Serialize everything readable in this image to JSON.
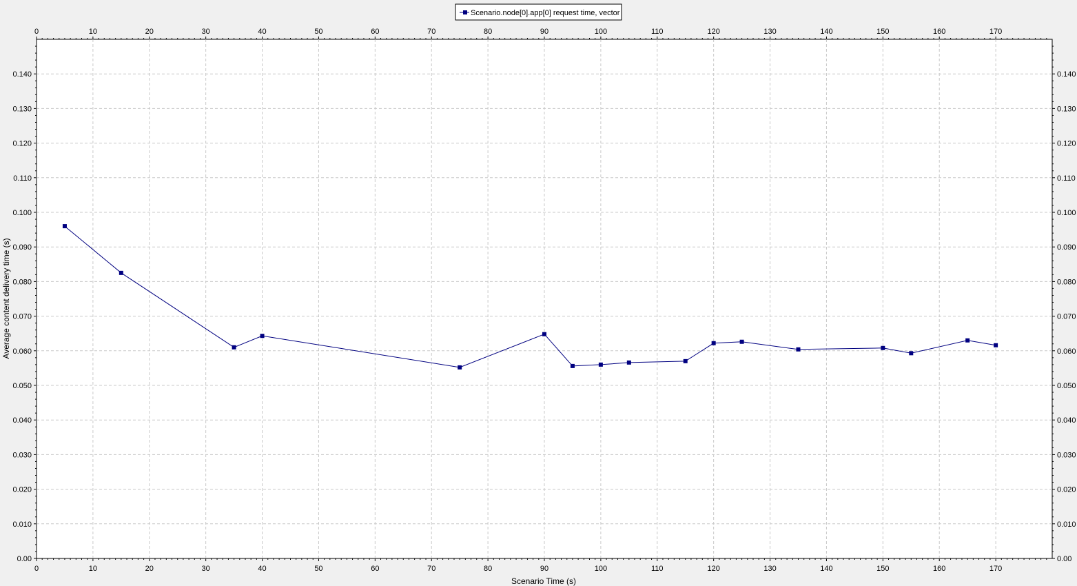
{
  "chart_data": {
    "type": "line",
    "title": "",
    "xlabel": "Scenario Time (s)",
    "ylabel": "Average content delivery time (s)",
    "xlim": [
      0,
      180
    ],
    "ylim": [
      0,
      0.15
    ],
    "x_ticks": [
      0,
      10,
      20,
      30,
      40,
      50,
      60,
      70,
      80,
      90,
      100,
      110,
      120,
      130,
      140,
      150,
      160,
      170
    ],
    "y_ticks": [
      0.0,
      0.01,
      0.02,
      0.03,
      0.04,
      0.05,
      0.06,
      0.07,
      0.08,
      0.09,
      0.1,
      0.11,
      0.12,
      0.13,
      0.14
    ],
    "y_tick_labels": [
      "0.00",
      "0.010",
      "0.020",
      "0.030",
      "0.040",
      "0.050",
      "0.060",
      "0.070",
      "0.080",
      "0.090",
      "0.100",
      "0.110",
      "0.120",
      "0.130",
      "0.140"
    ],
    "grid": true,
    "legend_position": "top-center",
    "series": [
      {
        "name": "Scenario.node[0].app[0] request time, vector",
        "color": "#000080",
        "marker": "square",
        "x": [
          5,
          15,
          35,
          40,
          75,
          90,
          95,
          100,
          105,
          115,
          120,
          125,
          135,
          150,
          155,
          165,
          170
        ],
        "y": [
          0.096,
          0.0825,
          0.061,
          0.0643,
          0.0552,
          0.0648,
          0.0556,
          0.056,
          0.0566,
          0.057,
          0.0622,
          0.0626,
          0.0604,
          0.0608,
          0.0593,
          0.063,
          0.0616
        ]
      }
    ]
  }
}
